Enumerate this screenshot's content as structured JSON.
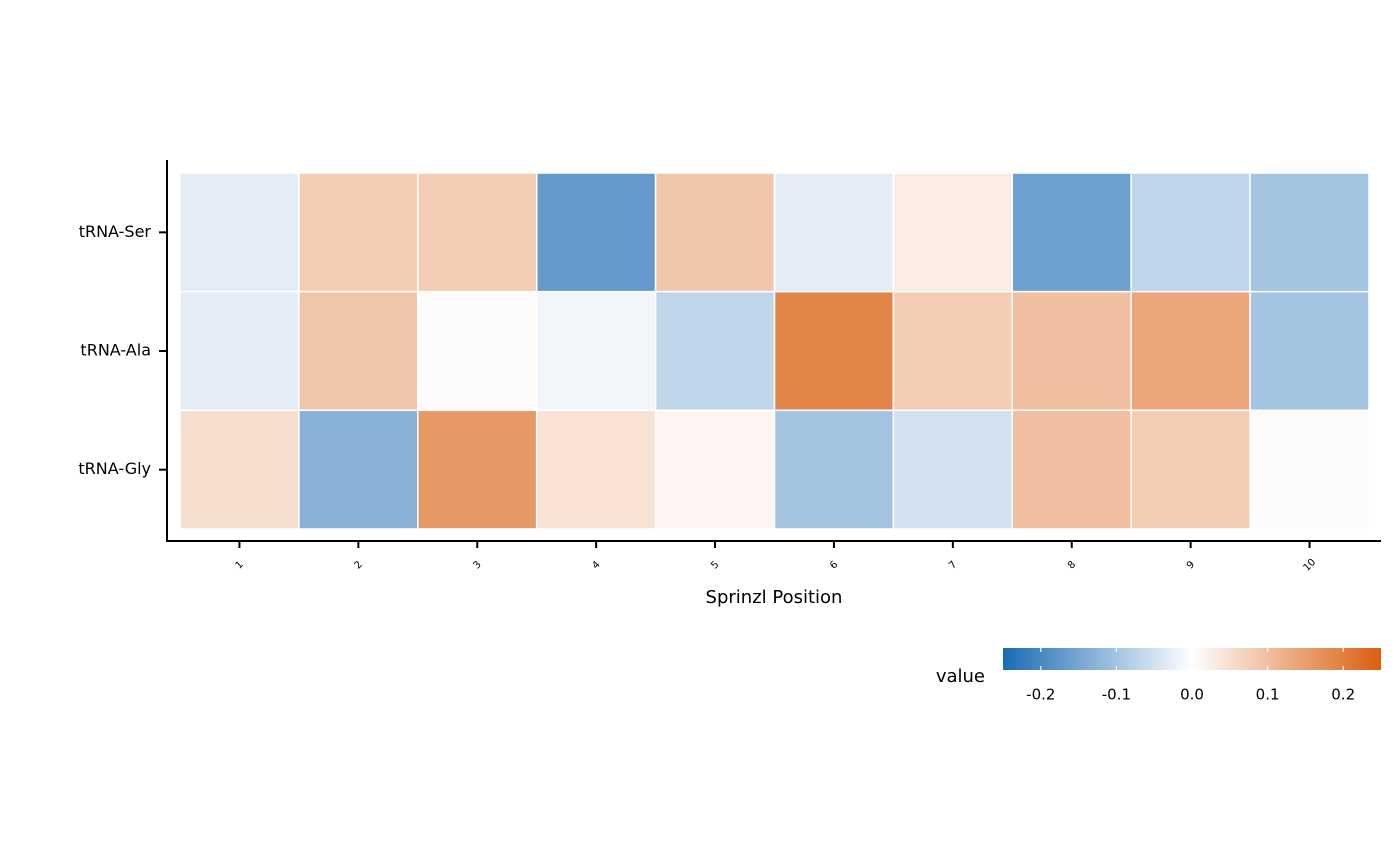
{
  "chart_data": {
    "type": "heatmap",
    "x_label": "Sprinzl Position",
    "categories": [
      "1",
      "2",
      "3",
      "4",
      "5",
      "6",
      "7",
      "8",
      "9",
      "10"
    ],
    "series": [
      {
        "name": "tRNA-Ser",
        "values": [
          -0.03,
          0.08,
          0.08,
          -0.17,
          0.09,
          -0.03,
          0.03,
          -0.16,
          -0.07,
          -0.1
        ]
      },
      {
        "name": "tRNA-Ala",
        "values": [
          -0.03,
          0.09,
          0.005,
          -0.015,
          -0.07,
          0.19,
          0.08,
          0.1,
          0.14,
          -0.1
        ]
      },
      {
        "name": "tRNA-Gly",
        "values": [
          0.05,
          -0.13,
          0.16,
          0.045,
          0.015,
          -0.1,
          -0.05,
          0.1,
          0.08,
          0.005
        ]
      }
    ],
    "legend_title": "value",
    "colorscale": {
      "low": "#1a6bb3",
      "mid": "#ffffff",
      "high": "#d95f0e"
    },
    "clim": [
      -0.25,
      0.25
    ],
    "colorbar_ticks": [
      -0.2,
      -0.1,
      {
        "value": 0,
        "label": "0.0"
      },
      0.1,
      0.2
    ]
  }
}
